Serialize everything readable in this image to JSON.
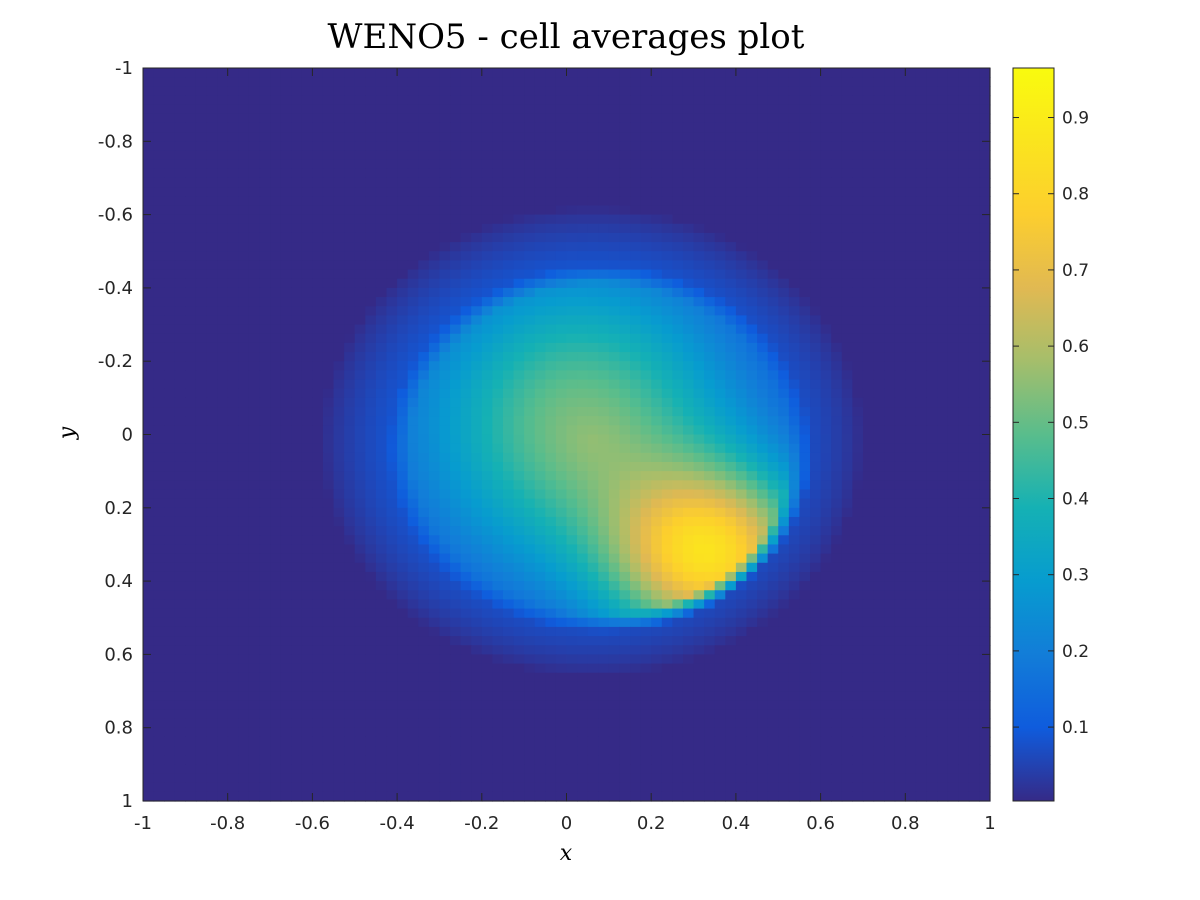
{
  "chart_data": {
    "type": "heatmap",
    "title": "WENO5 - cell averages plot",
    "xlabel": "x",
    "ylabel": "y",
    "xlim": [
      -1,
      1
    ],
    "ylim": [
      -1,
      1
    ],
    "y_direction": "reversed",
    "x_ticks": [
      "-1",
      "-0.8",
      "-0.6",
      "-0.4",
      "-0.2",
      "0",
      "0.2",
      "0.4",
      "0.6",
      "0.8",
      "1"
    ],
    "y_ticks": [
      "-1",
      "-0.8",
      "-0.6",
      "-0.4",
      "-0.2",
      "0",
      "0.2",
      "0.4",
      "0.6",
      "0.8",
      "1"
    ],
    "grid": false,
    "colormap": "parula",
    "colorbar": {
      "range": [
        0.003,
        0.965
      ],
      "ticks": [
        "0.1",
        "0.2",
        "0.3",
        "0.4",
        "0.5",
        "0.6",
        "0.7",
        "0.8",
        "0.9"
      ],
      "placement": "right"
    },
    "field": {
      "description": "swirled Gaussian hump: outer disc centre (0.06, 0.02) radius 0.64, peak 0.96 near (0.35, 0.34), sharp front on the lower-right edge",
      "grid_size": 80,
      "background": 0.003,
      "outer_center": [
        0.06,
        0.02
      ],
      "outer_radius": 0.64,
      "peak_center": [
        0.35,
        0.34
      ],
      "peak_value": 0.96,
      "front_radius": 0.48,
      "front_center": [
        0.08,
        0.04
      ]
    }
  }
}
